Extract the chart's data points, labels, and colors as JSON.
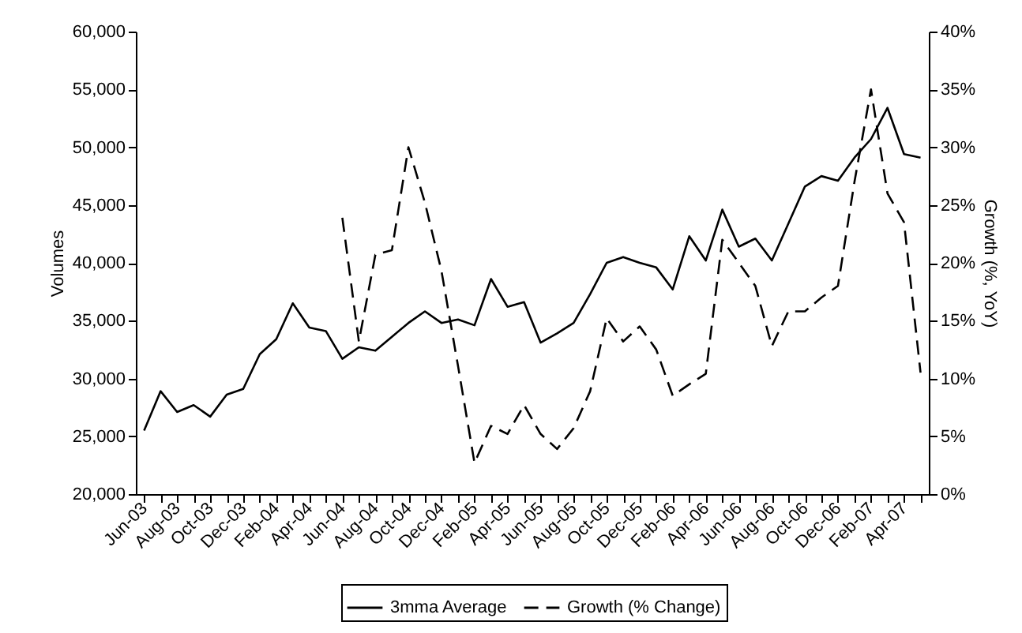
{
  "chart_data": {
    "type": "line",
    "categories": [
      "Jun-03",
      null,
      "Aug-03",
      null,
      "Oct-03",
      null,
      "Dec-03",
      null,
      "Feb-04",
      null,
      "Apr-04",
      null,
      "Jun-04",
      null,
      "Aug-04",
      null,
      "Oct-04",
      null,
      "Dec-04",
      null,
      "Feb-05",
      null,
      "Apr-05",
      null,
      "Jun-05",
      null,
      "Aug-05",
      null,
      "Oct-05",
      null,
      "Dec-05",
      null,
      "Feb-06",
      null,
      "Apr-06",
      null,
      "Jun-06",
      null,
      "Aug-06",
      null,
      "Oct-06",
      null,
      "Dec-06",
      null,
      "Feb-07",
      null,
      "Apr-07",
      null
    ],
    "series": [
      {
        "name": "3mma Average",
        "color": "#000000",
        "line_style": "solid",
        "values": [
          25500,
          28900,
          27100,
          27700,
          26700,
          28600,
          29100,
          32100,
          33400,
          36500,
          34400,
          34100,
          31700,
          32700,
          32400,
          33600,
          34800,
          35800,
          34800,
          35100,
          34600,
          38600,
          36200,
          36600,
          33100,
          33900,
          34800,
          37300,
          40000,
          40500,
          40000,
          39600,
          37700,
          42300,
          40200,
          44600,
          41400,
          42100,
          40200,
          43400,
          46600,
          47500,
          47100,
          49100,
          50700,
          53400,
          49400,
          49100
        ]
      },
      {
        "name": "Growth (% Change)",
        "color": "#000000",
        "line_style": "dashed",
        "axis": "y2",
        "values": [
          null,
          null,
          null,
          null,
          null,
          null,
          null,
          null,
          null,
          null,
          null,
          null,
          23.9,
          13.2,
          20.7,
          21.1,
          30.0,
          25.2,
          19.3,
          11.1,
          2.7,
          5.9,
          5.2,
          7.7,
          5.2,
          3.9,
          5.7,
          8.9,
          15.2,
          13.2,
          14.5,
          12.5,
          8.5,
          9.5,
          10.4,
          22.0,
          20.0,
          18.0,
          12.8,
          15.8,
          15.8,
          17.0,
          18.0,
          27.0,
          35.0,
          26.0,
          23.5,
          10.5
        ]
      }
    ],
    "ylabel": "Volumes",
    "y2label": "Growth (%, YoY)",
    "ylim": [
      20000,
      60000
    ],
    "yticks": [
      {
        "value": 20000,
        "label": "20,000"
      },
      {
        "value": 25000,
        "label": "25,000"
      },
      {
        "value": 30000,
        "label": "30,000"
      },
      {
        "value": 35000,
        "label": "35,000"
      },
      {
        "value": 40000,
        "label": "40,000"
      },
      {
        "value": 45000,
        "label": "45,000"
      },
      {
        "value": 50000,
        "label": "50,000"
      },
      {
        "value": 55000,
        "label": "55,000"
      },
      {
        "value": 60000,
        "label": "60,000"
      }
    ],
    "y2lim": [
      0,
      40
    ],
    "y2ticks": [
      {
        "value": 0,
        "label": "0%"
      },
      {
        "value": 5,
        "label": "5%"
      },
      {
        "value": 10,
        "label": "10%"
      },
      {
        "value": 15,
        "label": "15%"
      },
      {
        "value": 20,
        "label": "20%"
      },
      {
        "value": 25,
        "label": "25%"
      },
      {
        "value": 30,
        "label": "30%"
      },
      {
        "value": 35,
        "label": "35%"
      },
      {
        "value": 40,
        "label": "40%"
      }
    ],
    "grid": false,
    "legend": "bottom"
  }
}
